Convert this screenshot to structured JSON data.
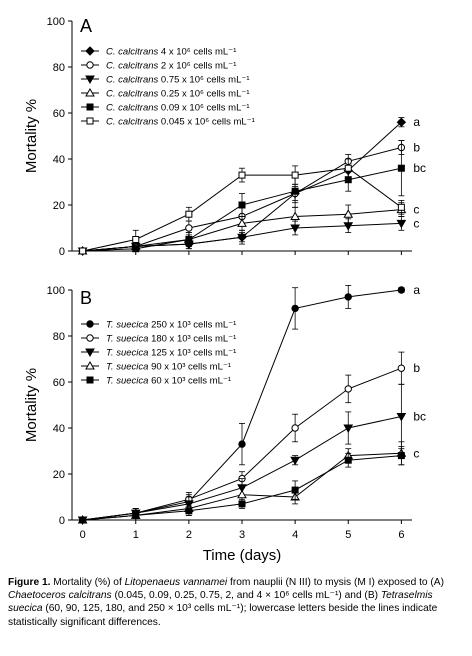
{
  "chart_data": [
    {
      "type": "line",
      "panel_label": "A",
      "xlabel": "",
      "ylabel": "Mortality %",
      "x": [
        0,
        1,
        2,
        3,
        4,
        5,
        6
      ],
      "xlim": [
        -0.2,
        6.2
      ],
      "ylim": [
        0,
        100
      ],
      "yticks": [
        0,
        20,
        40,
        60,
        80,
        100
      ],
      "series": [
        {
          "name_species": "C. calcitrans",
          "name_rest": "4 x 10⁶ cells mL⁻¹",
          "marker": "diamond-filled",
          "values": [
            0,
            2,
            3,
            6,
            25,
            35,
            56
          ],
          "errors": [
            0,
            2,
            2,
            3,
            3,
            3,
            2
          ],
          "end_label": "a"
        },
        {
          "name_species": "C. calcitrans",
          "name_rest": "2 x 10⁶ cells mL⁻¹",
          "marker": "circle-open",
          "values": [
            0,
            2,
            10,
            15,
            25,
            39,
            45
          ],
          "errors": [
            0,
            2,
            3,
            4,
            4,
            3,
            3
          ],
          "end_label": "b"
        },
        {
          "name_species": "C. calcitrans",
          "name_rest": "0.75 x 10⁶ cells mL⁻¹",
          "marker": "triangle-down-filled",
          "values": [
            0,
            2,
            3,
            6,
            10,
            11,
            12
          ],
          "errors": [
            0,
            2,
            2,
            2,
            3,
            3,
            3
          ],
          "end_label": "c"
        },
        {
          "name_species": "C. calcitrans",
          "name_rest": "0.25 x 10⁶ cells mL⁻¹",
          "marker": "triangle-up-open",
          "values": [
            0,
            2,
            5,
            12,
            15,
            16,
            18
          ],
          "errors": [
            0,
            2,
            3,
            3,
            4,
            4,
            3
          ],
          "end_label": "c"
        },
        {
          "name_species": "C. calcitrans",
          "name_rest": "0.09 x 10⁶ cells mL⁻¹",
          "marker": "square-filled",
          "values": [
            0,
            1,
            5,
            20,
            26,
            31,
            36
          ],
          "errors": [
            0,
            2,
            3,
            5,
            7,
            5,
            12
          ],
          "end_label": "bc"
        },
        {
          "name_species": "C. calcitrans",
          "name_rest": "0.045 x 10⁶ cells mL⁻¹",
          "marker": "square-open",
          "values": [
            0,
            5,
            16,
            33,
            33,
            36,
            19
          ],
          "errors": [
            0,
            4,
            3,
            3,
            4,
            4,
            3
          ],
          "end_label": ""
        }
      ]
    },
    {
      "type": "line",
      "panel_label": "B",
      "xlabel": "Time (days)",
      "ylabel": "Mortality %",
      "x": [
        0,
        1,
        2,
        3,
        4,
        5,
        6
      ],
      "xticks": [
        0,
        1,
        2,
        3,
        4,
        5,
        6
      ],
      "xlim": [
        -0.2,
        6.2
      ],
      "ylim": [
        0,
        100
      ],
      "yticks": [
        0,
        20,
        40,
        60,
        80,
        100
      ],
      "series": [
        {
          "name_species": "T. suecica",
          "name_rest": "250 x 10³ cells mL⁻¹",
          "marker": "circle-filled",
          "values": [
            0,
            3,
            8,
            33,
            92,
            97,
            100
          ],
          "errors": [
            0,
            2,
            3,
            9,
            9,
            5,
            1
          ],
          "end_label": "a"
        },
        {
          "name_species": "T. suecica",
          "name_rest": "180 x 10³ cells mL⁻¹",
          "marker": "circle-open",
          "values": [
            0,
            3,
            9,
            18,
            40,
            57,
            66
          ],
          "errors": [
            0,
            2,
            3,
            3,
            6,
            6,
            7
          ],
          "end_label": "b"
        },
        {
          "name_species": "T. suecica",
          "name_rest": "125 x 10³ cells mL⁻¹",
          "marker": "triangle-down-filled",
          "values": [
            0,
            3,
            7,
            14,
            26,
            40,
            45
          ],
          "errors": [
            0,
            2,
            3,
            4,
            2,
            7,
            14
          ],
          "end_label": "bc"
        },
        {
          "name_species": "T. suecica",
          "name_rest": "90 x 10³ cells mL⁻¹",
          "marker": "triangle-up-open",
          "values": [
            0,
            2,
            5,
            11,
            10,
            28,
            29
          ],
          "errors": [
            0,
            2,
            3,
            3,
            3,
            3,
            5
          ],
          "end_label": "c"
        },
        {
          "name_species": "T. suecica",
          "name_rest": "60 x 10³ cells mL⁻¹",
          "marker": "square-filled",
          "values": [
            0,
            2,
            4,
            7,
            13,
            26,
            28
          ],
          "errors": [
            0,
            2,
            2,
            2,
            4,
            3,
            4
          ],
          "end_label": ""
        }
      ]
    }
  ],
  "caption": {
    "label": "Figure 1.",
    "t1": " Mortality (%) of ",
    "species_main": "Litopenaeus vannamei",
    "t2": " from nauplii (N III) to mysis (M I) exposed to (A) ",
    "species_a": "Chaetoceros calcitrans",
    "t3": " (0.045, 0.09, 0.25, 0.75, 2, and 4 × 10⁶ cells mL⁻¹) and (B) ",
    "species_b": "Tetraselmis suecica",
    "t4": " (60, 90, 125, 180, and 250 × 10³ cells mL⁻¹); lowercase letters beside the lines indicate statistically significant differences."
  }
}
